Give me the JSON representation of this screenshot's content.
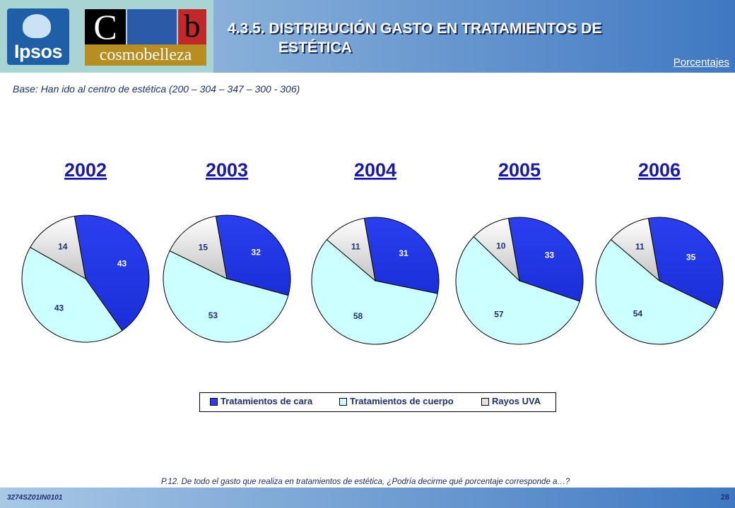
{
  "header": {
    "title_line1": "4.3.5. DISTRIBUCIÓN GASTO EN TRATAMIENTOS DE",
    "title_line2": "ESTÉTICA",
    "units_link": "Porcentajes"
  },
  "logos": {
    "ipsos": "Ipsos",
    "c_letter": "C",
    "b_letter": "b",
    "brand": "cosmobelleza"
  },
  "base_note": "Base: Han ido al centro de estética (200 – 304 – 347 – 300 - 306)",
  "colors": {
    "cara": "#2b3ff0",
    "cuerpo": "#ccffff",
    "rayos": "#e3e3e3",
    "year_label": "#1a1aa6",
    "text": "#1f2f6f"
  },
  "chart_data": {
    "type": "pie",
    "series_names": [
      "Tratamientos de cara",
      "Tratamientos de cuerpo",
      "Rayos UVA"
    ],
    "pies": [
      {
        "year": "2002",
        "values": [
          43,
          43,
          14
        ]
      },
      {
        "year": "2003",
        "values": [
          32,
          53,
          15
        ]
      },
      {
        "year": "2004",
        "values": [
          31,
          58,
          11
        ]
      },
      {
        "year": "2005",
        "values": [
          33,
          57,
          10
        ]
      },
      {
        "year": "2006",
        "values": [
          35,
          54,
          11
        ]
      }
    ],
    "legend_position": "bottom"
  },
  "question": "P.12.  De todo el gasto que realiza en tratamientos de estética, ¿Podría decirme qué porcentaje corresponde a…?",
  "footer": {
    "code": "3274SZ01IN0101",
    "page": "28"
  }
}
